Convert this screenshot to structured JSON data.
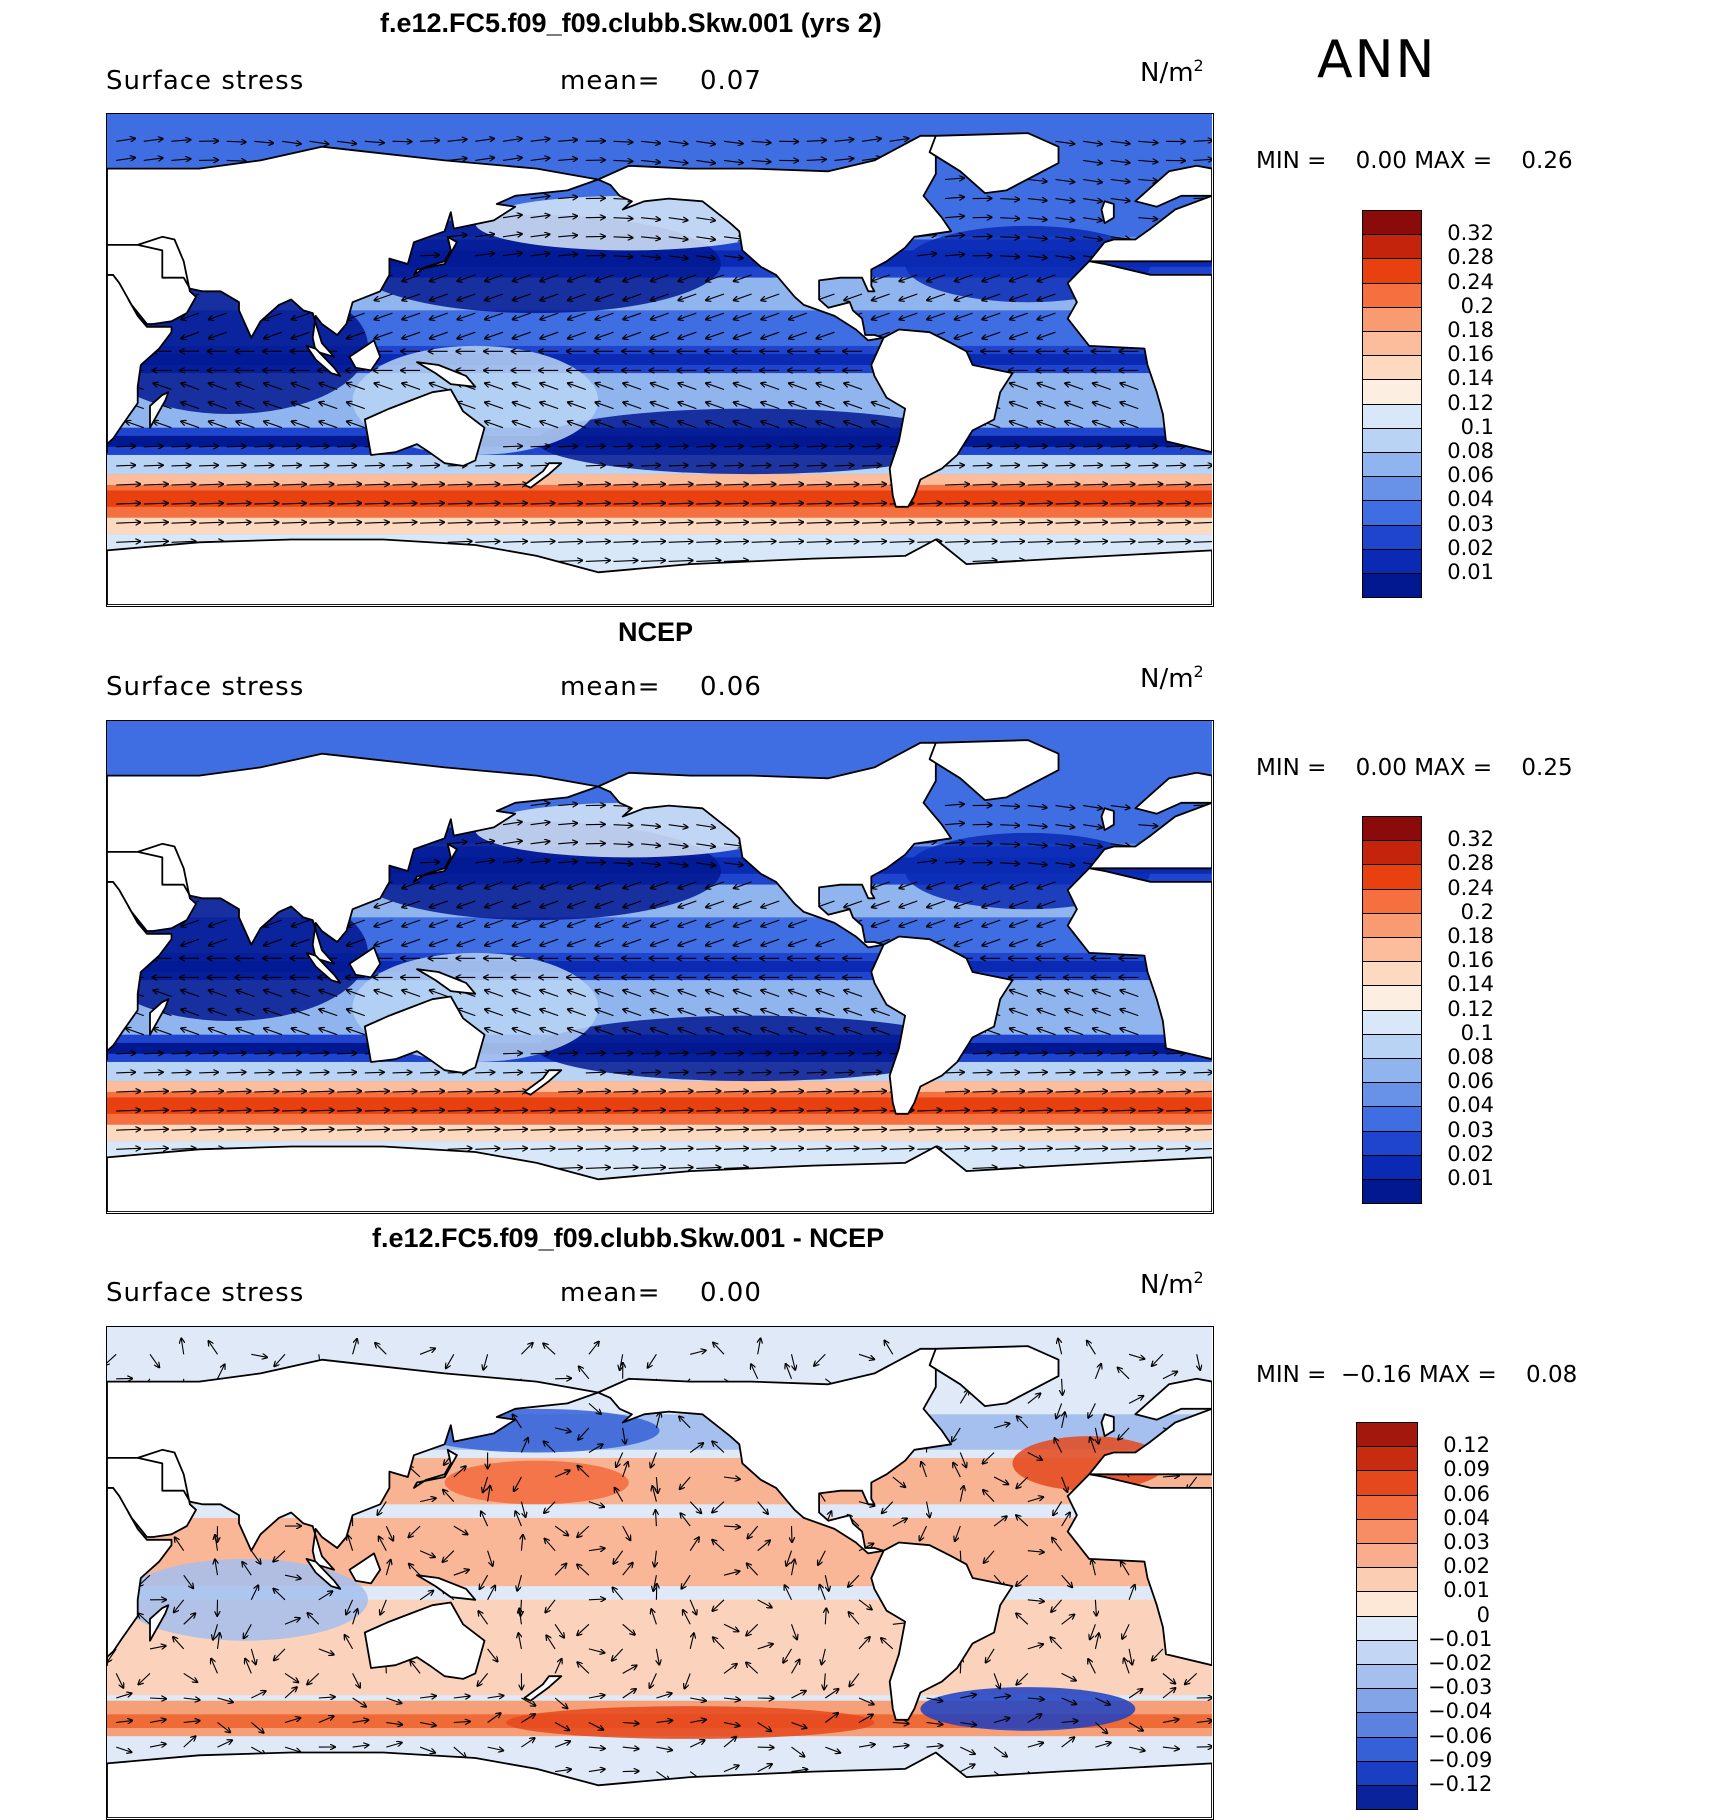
{
  "season": "ANN",
  "panels": [
    {
      "id": "model",
      "title": "f.e12.FC5.f09_f09.clubb.Skw.001 (yrs 2)",
      "variable": "Surface stress",
      "mean_label": "mean=",
      "mean": "0.07",
      "units": "N/m",
      "units_exp": "2",
      "min_label": "MIN =",
      "min": "0.00",
      "max_label": "MAX =",
      "max": "0.26",
      "colorbar_levels": [
        "0.32",
        "0.28",
        "0.24",
        "0.2",
        "0.18",
        "0.16",
        "0.14",
        "0.12",
        "0.1",
        "0.08",
        "0.06",
        "0.04",
        "0.03",
        "0.02",
        "0.01"
      ],
      "colorbar_colors": [
        "#8b0a0a",
        "#c4240c",
        "#e8400f",
        "#f6703f",
        "#f99b70",
        "#fbbd9c",
        "#fdd9c0",
        "#fdeee2",
        "#d8e8f8",
        "#b8d3f4",
        "#8fb4ee",
        "#6891e8",
        "#3f6de2",
        "#1f45cf",
        "#0a2ab4",
        "#021890"
      ]
    },
    {
      "id": "obs",
      "title": "NCEP",
      "variable": "Surface stress",
      "mean_label": "mean=",
      "mean": "0.06",
      "units": "N/m",
      "units_exp": "2",
      "min_label": "MIN =",
      "min": "0.00",
      "max_label": "MAX =",
      "max": "0.25",
      "colorbar_levels": [
        "0.32",
        "0.28",
        "0.24",
        "0.2",
        "0.18",
        "0.16",
        "0.14",
        "0.12",
        "0.1",
        "0.08",
        "0.06",
        "0.04",
        "0.03",
        "0.02",
        "0.01"
      ],
      "colorbar_colors": [
        "#8b0a0a",
        "#c4240c",
        "#e8400f",
        "#f6703f",
        "#f99b70",
        "#fbbd9c",
        "#fdd9c0",
        "#fdeee2",
        "#d8e8f8",
        "#b8d3f4",
        "#8fb4ee",
        "#6891e8",
        "#3f6de2",
        "#1f45cf",
        "#0a2ab4",
        "#021890"
      ]
    },
    {
      "id": "diff",
      "title": "f.e12.FC5.f09_f09.clubb.Skw.001 - NCEP",
      "variable": "Surface stress",
      "mean_label": "mean=",
      "mean": "0.00",
      "units": "N/m",
      "units_exp": "2",
      "min_label": "MIN =",
      "min": "−0.16",
      "max_label": "MAX =",
      "max": "0.08",
      "colorbar_levels": [
        "0.12",
        "0.09",
        "0.06",
        "0.04",
        "0.03",
        "0.02",
        "0.01",
        "0",
        "−0.01",
        "−0.02",
        "−0.03",
        "−0.04",
        "−0.06",
        "−0.09",
        "−0.12"
      ],
      "colorbar_colors": [
        "#a3180c",
        "#c72b10",
        "#e5481c",
        "#f26a3c",
        "#f68d65",
        "#f9ad8c",
        "#fbcdb3",
        "#fde8d8",
        "#dfe9f7",
        "#c3d6f3",
        "#a5c0ee",
        "#84a4e8",
        "#5c82e0",
        "#3560d6",
        "#1b3fc3",
        "#0a239a"
      ]
    }
  ]
}
